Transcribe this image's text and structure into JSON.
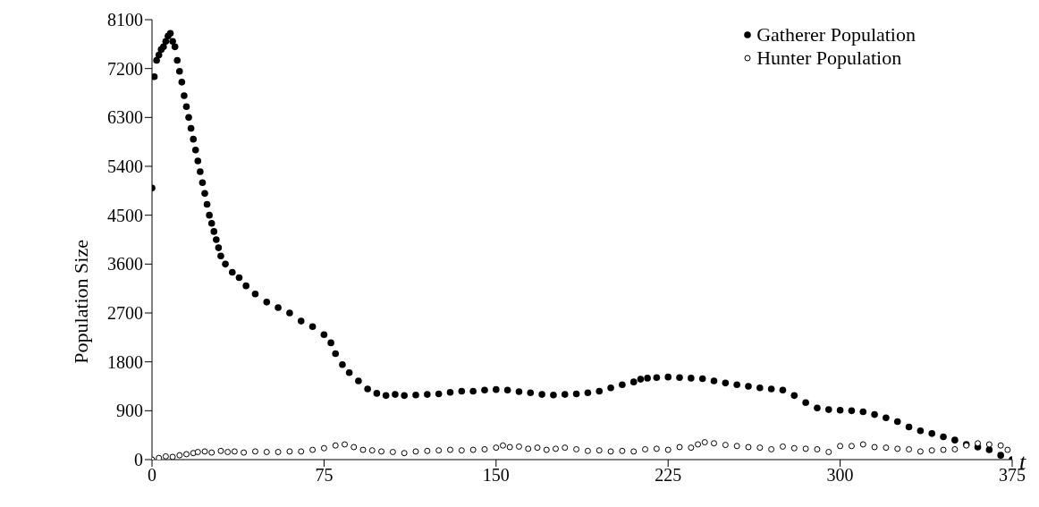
{
  "chart_data": {
    "type": "scatter",
    "xlabel": "t",
    "ylabel": "Population Size",
    "xlim": [
      0,
      375
    ],
    "xticks": [
      0,
      75,
      150,
      225,
      300,
      375
    ],
    "ylim": [
      0,
      8100
    ],
    "yticks": [
      0,
      900,
      1800,
      2700,
      3600,
      4500,
      5400,
      6300,
      7200,
      8100
    ],
    "grid": false,
    "legend": "top right",
    "marker": "circle",
    "series": [
      {
        "name": "Gatherer Population",
        "color": "#000000",
        "x": [
          0,
          1,
          2,
          3,
          4,
          5,
          6,
          7,
          8,
          9,
          10,
          11,
          12,
          13,
          14,
          15,
          16,
          17,
          18,
          19,
          20,
          21,
          22,
          23,
          24,
          25,
          26,
          27,
          28,
          29,
          30,
          32,
          35,
          38,
          41,
          45,
          50,
          55,
          60,
          65,
          70,
          75,
          78,
          80,
          83,
          86,
          90,
          94,
          98,
          102,
          106,
          110,
          115,
          120,
          125,
          130,
          135,
          140,
          145,
          150,
          155,
          160,
          165,
          170,
          175,
          180,
          185,
          190,
          195,
          200,
          205,
          210,
          213,
          216,
          220,
          225,
          230,
          235,
          240,
          245,
          250,
          255,
          260,
          265,
          270,
          275,
          280,
          285,
          290,
          295,
          300,
          305,
          310,
          315,
          320,
          325,
          330,
          335,
          340,
          345,
          350,
          355,
          360,
          365,
          370,
          375
        ],
        "values": [
          5000,
          7050,
          7350,
          7450,
          7550,
          7600,
          7700,
          7800,
          7850,
          7700,
          7600,
          7350,
          7150,
          6950,
          6700,
          6500,
          6300,
          6100,
          5900,
          5700,
          5500,
          5300,
          5100,
          4900,
          4700,
          4500,
          4350,
          4200,
          4050,
          3900,
          3750,
          3600,
          3450,
          3350,
          3200,
          3050,
          2900,
          2800,
          2700,
          2550,
          2450,
          2300,
          2150,
          1950,
          1750,
          1600,
          1450,
          1300,
          1220,
          1180,
          1200,
          1180,
          1190,
          1200,
          1210,
          1240,
          1260,
          1260,
          1280,
          1290,
          1280,
          1250,
          1230,
          1200,
          1190,
          1200,
          1210,
          1230,
          1260,
          1320,
          1380,
          1430,
          1480,
          1500,
          1510,
          1520,
          1510,
          1500,
          1490,
          1450,
          1410,
          1380,
          1350,
          1320,
          1300,
          1280,
          1180,
          1050,
          950,
          920,
          910,
          900,
          880,
          830,
          770,
          700,
          600,
          530,
          480,
          420,
          360,
          280,
          230,
          180,
          80,
          0
        ]
      },
      {
        "name": "Hunter Population",
        "color": "#000000",
        "x": [
          0,
          3,
          6,
          9,
          12,
          15,
          18,
          20,
          23,
          26,
          30,
          33,
          36,
          40,
          45,
          50,
          55,
          60,
          65,
          70,
          75,
          80,
          84,
          88,
          92,
          96,
          100,
          105,
          110,
          115,
          120,
          125,
          130,
          135,
          140,
          145,
          150,
          153,
          156,
          160,
          164,
          168,
          172,
          176,
          180,
          185,
          190,
          195,
          200,
          205,
          210,
          215,
          220,
          225,
          230,
          235,
          238,
          241,
          245,
          250,
          255,
          260,
          265,
          270,
          275,
          280,
          285,
          290,
          295,
          300,
          305,
          310,
          315,
          320,
          325,
          330,
          335,
          340,
          345,
          350,
          355,
          360,
          365,
          370,
          373
        ],
        "values": [
          0,
          30,
          60,
          50,
          80,
          100,
          120,
          140,
          150,
          130,
          160,
          140,
          150,
          130,
          150,
          140,
          140,
          150,
          150,
          180,
          210,
          260,
          280,
          230,
          180,
          170,
          150,
          140,
          120,
          150,
          160,
          170,
          180,
          170,
          180,
          190,
          220,
          260,
          230,
          240,
          200,
          220,
          180,
          200,
          220,
          190,
          160,
          170,
          150,
          160,
          150,
          190,
          200,
          180,
          230,
          220,
          280,
          320,
          300,
          270,
          250,
          230,
          220,
          190,
          240,
          210,
          200,
          190,
          140,
          250,
          250,
          280,
          230,
          220,
          200,
          190,
          150,
          170,
          180,
          190,
          260,
          300,
          280,
          260,
          180
        ]
      }
    ]
  }
}
